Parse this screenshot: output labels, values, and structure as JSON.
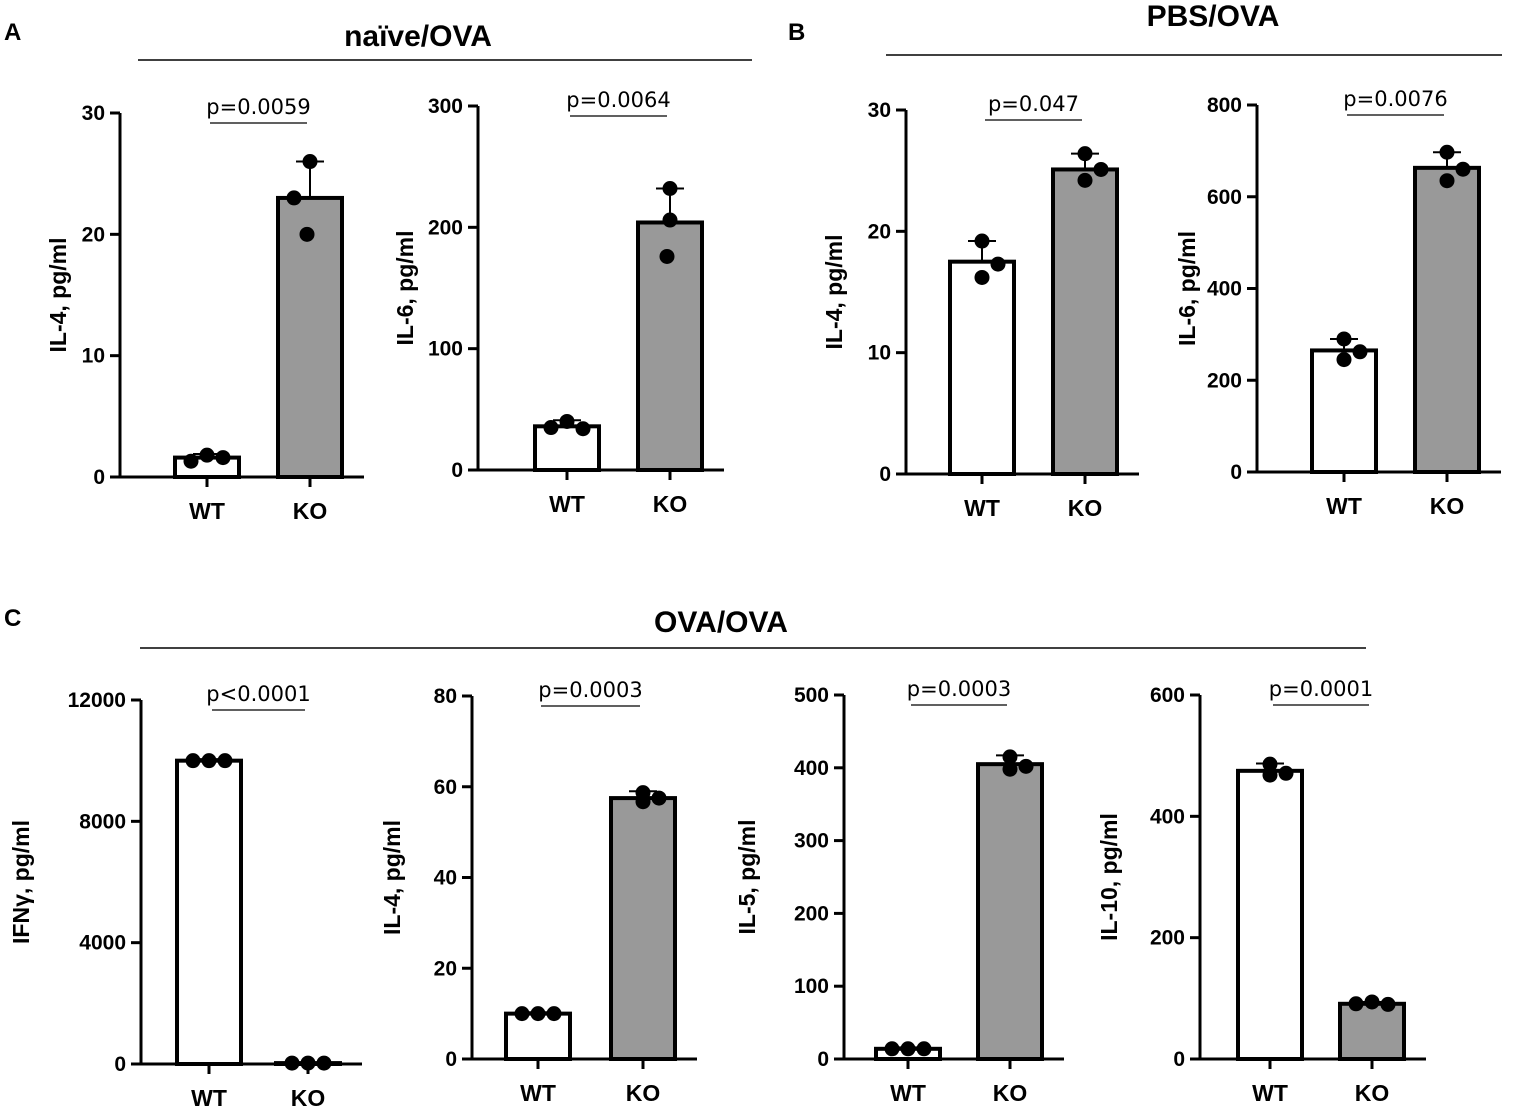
{
  "panels": {
    "A": {
      "letter": "A",
      "title": "naïve/OVA"
    },
    "B": {
      "letter": "B",
      "title": "PBS/OVA"
    },
    "C": {
      "letter": "C",
      "title": "OVA/OVA"
    }
  },
  "colors": {
    "wt_fill": "#ffffff",
    "ko_fill": "#999999",
    "stroke": "#000000"
  },
  "chart_data": [
    {
      "type": "bar",
      "panel": "A",
      "title": "",
      "xlabel": "",
      "ylabel": "IL-4, pg/ml",
      "categories": [
        "WT",
        "KO"
      ],
      "values": [
        1.6,
        23.0
      ],
      "errors": [
        0.3,
        3.0
      ],
      "points": [
        [
          1.3,
          1.8,
          1.6
        ],
        [
          23.0,
          26.0,
          20.0
        ]
      ],
      "ylim": [
        0,
        30
      ],
      "yticks": [
        0,
        10,
        20,
        30
      ],
      "significance": "p=0.0059"
    },
    {
      "type": "bar",
      "panel": "A",
      "title": "",
      "xlabel": "",
      "ylabel": "IL-6, pg/ml",
      "categories": [
        "WT",
        "KO"
      ],
      "values": [
        36,
        204
      ],
      "errors": [
        5,
        28
      ],
      "points": [
        [
          35,
          40,
          34
        ],
        [
          232,
          206,
          176
        ]
      ],
      "ylim": [
        0,
        300
      ],
      "yticks": [
        0,
        100,
        200,
        300
      ],
      "significance": "p=0.0064"
    },
    {
      "type": "bar",
      "panel": "B",
      "title": "",
      "xlabel": "",
      "ylabel": "IL-4, pg/ml",
      "categories": [
        "WT",
        "KO"
      ],
      "values": [
        17.5,
        25.1
      ],
      "errors": [
        1.7,
        1.3
      ],
      "points": [
        [
          19.2,
          16.2,
          17.3
        ],
        [
          26.4,
          24.2,
          25.1
        ]
      ],
      "ylim": [
        0,
        30
      ],
      "yticks": [
        0,
        10,
        20,
        30
      ],
      "significance": "p=0.047"
    },
    {
      "type": "bar",
      "panel": "B",
      "title": "",
      "xlabel": "",
      "ylabel": "IL-6, pg/ml",
      "categories": [
        "WT",
        "KO"
      ],
      "values": [
        265,
        663
      ],
      "errors": [
        25,
        34
      ],
      "points": [
        [
          290,
          245,
          262
        ],
        [
          697,
          635,
          660
        ]
      ],
      "ylim": [
        0,
        800
      ],
      "yticks": [
        0,
        200,
        400,
        600,
        800
      ],
      "significance": "p=0.0076"
    },
    {
      "type": "bar",
      "panel": "C",
      "title": "",
      "xlabel": "",
      "ylabel": "IFNγ, pg/ml",
      "categories": [
        "WT",
        "KO"
      ],
      "values": [
        10000,
        30
      ],
      "errors": [
        50,
        10
      ],
      "points": [
        [
          10000,
          10000,
          10000
        ],
        [
          30,
          30,
          30
        ]
      ],
      "ylim": [
        0,
        12000
      ],
      "yticks": [
        0,
        4000,
        8000,
        12000
      ],
      "significance": "p<0.0001"
    },
    {
      "type": "bar",
      "panel": "C",
      "title": "",
      "xlabel": "",
      "ylabel": "IL-4, pg/ml",
      "categories": [
        "WT",
        "KO"
      ],
      "values": [
        10,
        57.5
      ],
      "errors": [
        0.3,
        1.5
      ],
      "points": [
        [
          10,
          10,
          10
        ],
        [
          58.7,
          56.7,
          57.5
        ]
      ],
      "ylim": [
        0,
        80
      ],
      "yticks": [
        0,
        20,
        40,
        60,
        80
      ],
      "significance": "p=0.0003"
    },
    {
      "type": "bar",
      "panel": "C",
      "title": "",
      "xlabel": "",
      "ylabel": "IL-5, pg/ml",
      "categories": [
        "WT",
        "KO"
      ],
      "values": [
        14,
        405
      ],
      "errors": [
        2,
        12
      ],
      "points": [
        [
          14,
          14,
          14
        ],
        [
          415,
          398,
          402
        ]
      ],
      "ylim": [
        0,
        500
      ],
      "yticks": [
        0,
        100,
        200,
        300,
        400,
        500
      ],
      "significance": "p=0.0003"
    },
    {
      "type": "bar",
      "panel": "C",
      "title": "",
      "xlabel": "",
      "ylabel": "IL-10, pg/ml",
      "categories": [
        "WT",
        "KO"
      ],
      "values": [
        475,
        91
      ],
      "errors": [
        12,
        3
      ],
      "points": [
        [
          486,
          468,
          471
        ],
        [
          91,
          94,
          90
        ]
      ],
      "ylim": [
        0,
        600
      ],
      "yticks": [
        0,
        200,
        400,
        600
      ],
      "significance": "p=0.0001"
    }
  ]
}
